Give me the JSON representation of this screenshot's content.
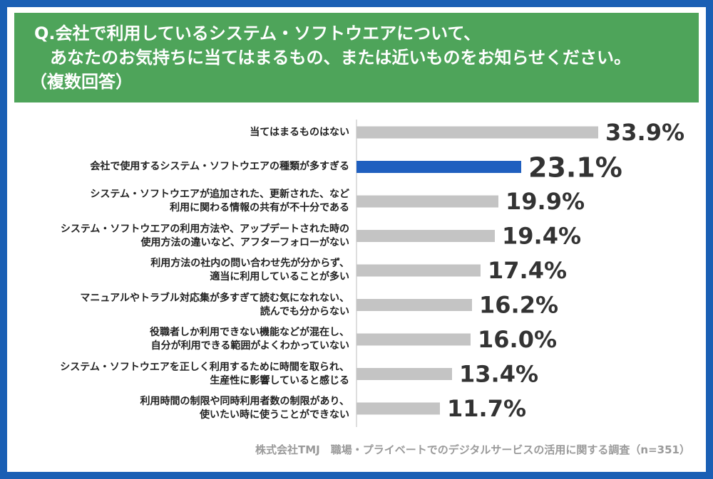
{
  "question": {
    "line1": "Q.会社で利用しているシステム・ソフトウエアについて、",
    "line2": "あなたのお気持ちに当てはまるもの、または近いものをお知らせください。",
    "line3": "（複数回答）"
  },
  "source": "株式会社TMJ　職場・プライベートでのデジタルサービスの活用に関する調査（n=351）",
  "colors": {
    "frame": "#1a5fb4",
    "header": "#4ea45a",
    "bar": "#c4c4c4",
    "highlight": "#1f5fbf",
    "gridline": "#bdbdbd"
  },
  "chart_data": {
    "type": "bar",
    "orientation": "horizontal",
    "categories": [
      [
        "当てはまるものはない"
      ],
      [
        "会社で使用するシステム・ソフトウエアの種類が多すぎる"
      ],
      [
        "システム・ソフトウエアが追加された、更新された、など",
        "利用に関わる情報の共有が不十分である"
      ],
      [
        "システム・ソフトウエアの利用方法や、アップデートされた時の",
        "使用方法の違いなど、アフターフォローがない"
      ],
      [
        "利用方法の社内の問い合わせ先が分からず、",
        "適当に利用していることが多い"
      ],
      [
        "マニュアルやトラブル対応集が多すぎて読む気になれない、",
        "読んでも分からない"
      ],
      [
        "役職者しか利用できない機能などが混在し、",
        "自分が利用できる範囲がよくわかっていない"
      ],
      [
        "システム・ソフトウエアを正しく利用するために時間を取られ、",
        "生産性に影響していると感じる"
      ],
      [
        "利用時間の制限や同時利用者数の制限があり、",
        "使いたい時に使うことができない"
      ]
    ],
    "values": [
      33.9,
      23.1,
      19.9,
      19.4,
      17.4,
      16.2,
      16.0,
      13.4,
      11.7
    ],
    "labels": [
      "33.9%",
      "23.1%",
      "19.9%",
      "19.4%",
      "17.4%",
      "16.2%",
      "16.0%",
      "13.4%",
      "11.7%"
    ],
    "highlight_index": 1,
    "xlim": [
      0,
      35
    ]
  }
}
